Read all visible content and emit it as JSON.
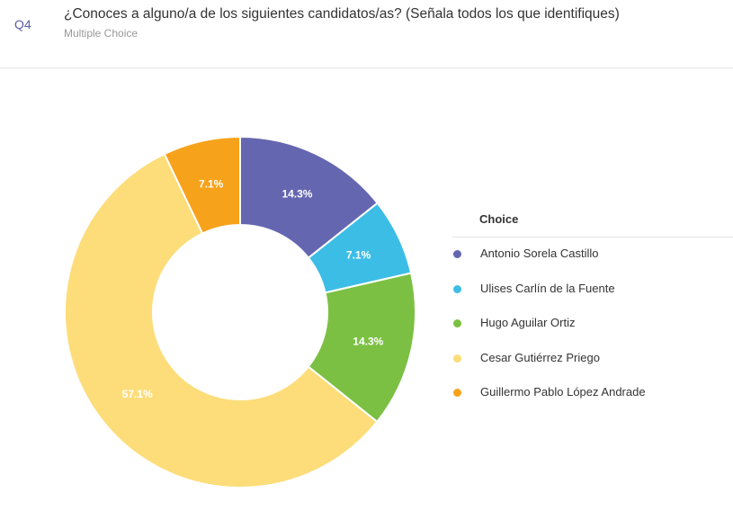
{
  "question": {
    "number": "Q4",
    "title": "¿Conoces a alguno/a de los siguientes candidatos/as? (Señala todos los que identifiques)",
    "type": "Multiple Choice"
  },
  "chart_data": {
    "type": "pie",
    "donut": true,
    "legend_title": "Choice",
    "legend_position": "right",
    "categories": [
      "Antonio Sorela Castillo",
      "Ulises Carlín de la Fuente",
      "Hugo Aguilar Ortiz",
      "Cesar Gutiérrez Priego",
      "Guillermo Pablo López Andrade"
    ],
    "values": [
      14.3,
      7.1,
      14.3,
      57.1,
      7.1
    ],
    "labels": [
      "14.3%",
      "7.1%",
      "14.3%",
      "57.1%",
      "7.1%"
    ],
    "colors": [
      "#6566b0",
      "#3cbde6",
      "#7bc043",
      "#fddd7a",
      "#f7a21b"
    ]
  }
}
